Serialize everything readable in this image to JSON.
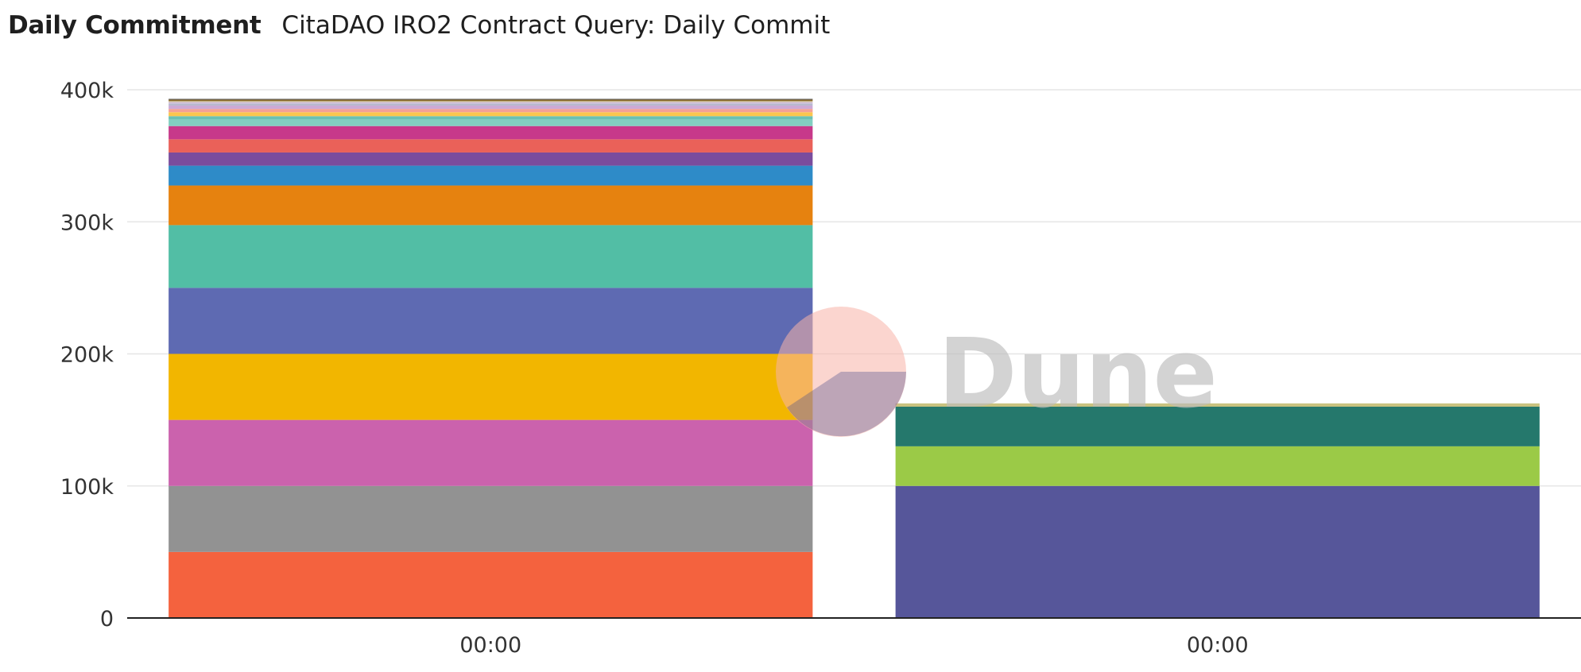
{
  "header": {
    "title": "Daily Commitment",
    "subtitle": "CitaDAO IRO2 Contract Query: Daily Commit"
  },
  "watermark": {
    "text": "Dune"
  },
  "chart_data": {
    "type": "bar",
    "stacked": true,
    "title": "Daily Commitment",
    "subtitle": "CitaDAO IRO2 Contract Query: Daily Commit",
    "categories": [
      "00:00",
      "00:00"
    ],
    "ylim": [
      0,
      400000
    ],
    "y_ticks": [
      0,
      100000,
      200000,
      300000,
      400000
    ],
    "y_tick_labels": [
      "0",
      "100k",
      "200k",
      "300k",
      "400k"
    ],
    "grid": true,
    "legend": "none",
    "stacks": [
      {
        "category": "00:00",
        "segments": [
          {
            "value": 50000,
            "color": "#f4623e"
          },
          {
            "value": 50000,
            "color": "#929292"
          },
          {
            "value": 50000,
            "color": "#cb62ad"
          },
          {
            "value": 50000,
            "color": "#f2b600"
          },
          {
            "value": 50000,
            "color": "#5e6ab2"
          },
          {
            "value": 47500,
            "color": "#52bea5"
          },
          {
            "value": 30000,
            "color": "#e6820f"
          },
          {
            "value": 15000,
            "color": "#2e8bc8"
          },
          {
            "value": 10000,
            "color": "#7a4c9d"
          },
          {
            "value": 10000,
            "color": "#ea6159"
          },
          {
            "value": 10000,
            "color": "#c7398a"
          },
          {
            "value": 5000,
            "color": "#82cfc1"
          },
          {
            "value": 2500,
            "color": "#6cc0b3"
          },
          {
            "value": 3000,
            "color": "#fcc64e"
          },
          {
            "value": 2500,
            "color": "#f5a196"
          },
          {
            "value": 2500,
            "color": "#cda9d6"
          },
          {
            "value": 1500,
            "color": "#b7b7cf"
          },
          {
            "value": 1200,
            "color": "#d4c3e0"
          },
          {
            "value": 800,
            "color": "#c8b68a"
          },
          {
            "value": 1000,
            "color": "#8c6c2c"
          },
          {
            "value": 600,
            "color": "#555555"
          }
        ]
      },
      {
        "category": "00:00",
        "segments": [
          {
            "value": 100000,
            "color": "#56569a"
          },
          {
            "value": 30000,
            "color": "#9bca47"
          },
          {
            "value": 30000,
            "color": "#25786c"
          },
          {
            "value": 2500,
            "color": "#c9c27f"
          }
        ]
      }
    ]
  }
}
